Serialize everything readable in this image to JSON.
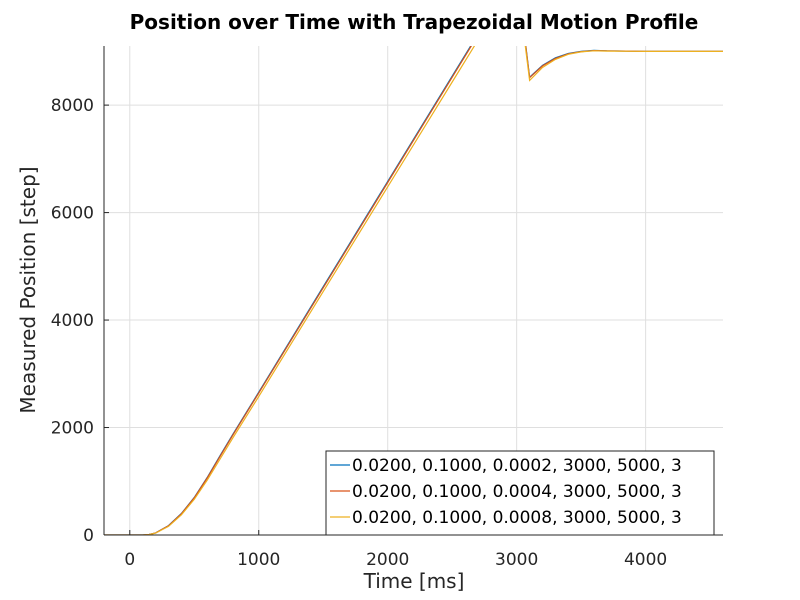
{
  "chart_data": {
    "type": "line",
    "title": "Position over Time with Trapezoidal Motion Profile",
    "xlabel": "Time [ms]",
    "ylabel": "Measured Position [step]",
    "xlim": [
      -200,
      4600
    ],
    "ylim": [
      0,
      9100
    ],
    "xticks": [
      0,
      1000,
      2000,
      3000,
      4000
    ],
    "yticks": [
      0,
      2000,
      4000,
      6000,
      8000
    ],
    "grid": true,
    "legend_position": "bottom-right",
    "series": [
      {
        "name": "0.0200, 0.1000, 0.0002, 3000, 5000, 3",
        "color": "#0072bd",
        "x": [
          -200,
          100,
          150,
          200,
          300,
          400,
          500,
          600,
          700,
          800,
          1000,
          1500,
          2000,
          2500,
          3000,
          3100,
          3200,
          3300,
          3400,
          3500,
          3600,
          3700,
          4000,
          4600
        ],
        "y": [
          0,
          0,
          10,
          40,
          175,
          400,
          700,
          1070,
          1480,
          1880,
          2660,
          4620,
          6580,
          8540,
          10500,
          8520,
          8740,
          8880,
          8960,
          9000,
          9020,
          9010,
          9000,
          9000
        ]
      },
      {
        "name": "0.0200, 0.1000, 0.0004, 3000, 5000, 3",
        "color": "#d95319",
        "x": [
          -200,
          100,
          150,
          200,
          300,
          400,
          500,
          600,
          700,
          800,
          1000,
          1500,
          2000,
          2500,
          3000,
          3100,
          3200,
          3300,
          3400,
          3500,
          3600,
          3700,
          4000,
          4600
        ],
        "y": [
          0,
          0,
          10,
          40,
          172,
          395,
          693,
          1060,
          1465,
          1865,
          2645,
          4600,
          6560,
          8520,
          10480,
          8510,
          8730,
          8870,
          8955,
          8995,
          9015,
          9010,
          9000,
          9000
        ]
      },
      {
        "name": "0.0200, 0.1000, 0.0008, 3000, 5000, 3",
        "color": "#edb120",
        "x": [
          -200,
          100,
          150,
          200,
          300,
          400,
          500,
          600,
          700,
          800,
          1000,
          1500,
          2000,
          2500,
          3000,
          3100,
          3200,
          3300,
          3400,
          3500,
          3600,
          3700,
          4000,
          4600
        ],
        "y": [
          0,
          0,
          8,
          35,
          160,
          375,
          665,
          1020,
          1415,
          1810,
          2580,
          4530,
          6480,
          8430,
          10380,
          8460,
          8700,
          8850,
          8945,
          8990,
          9010,
          9005,
          9000,
          9000
        ]
      }
    ]
  }
}
